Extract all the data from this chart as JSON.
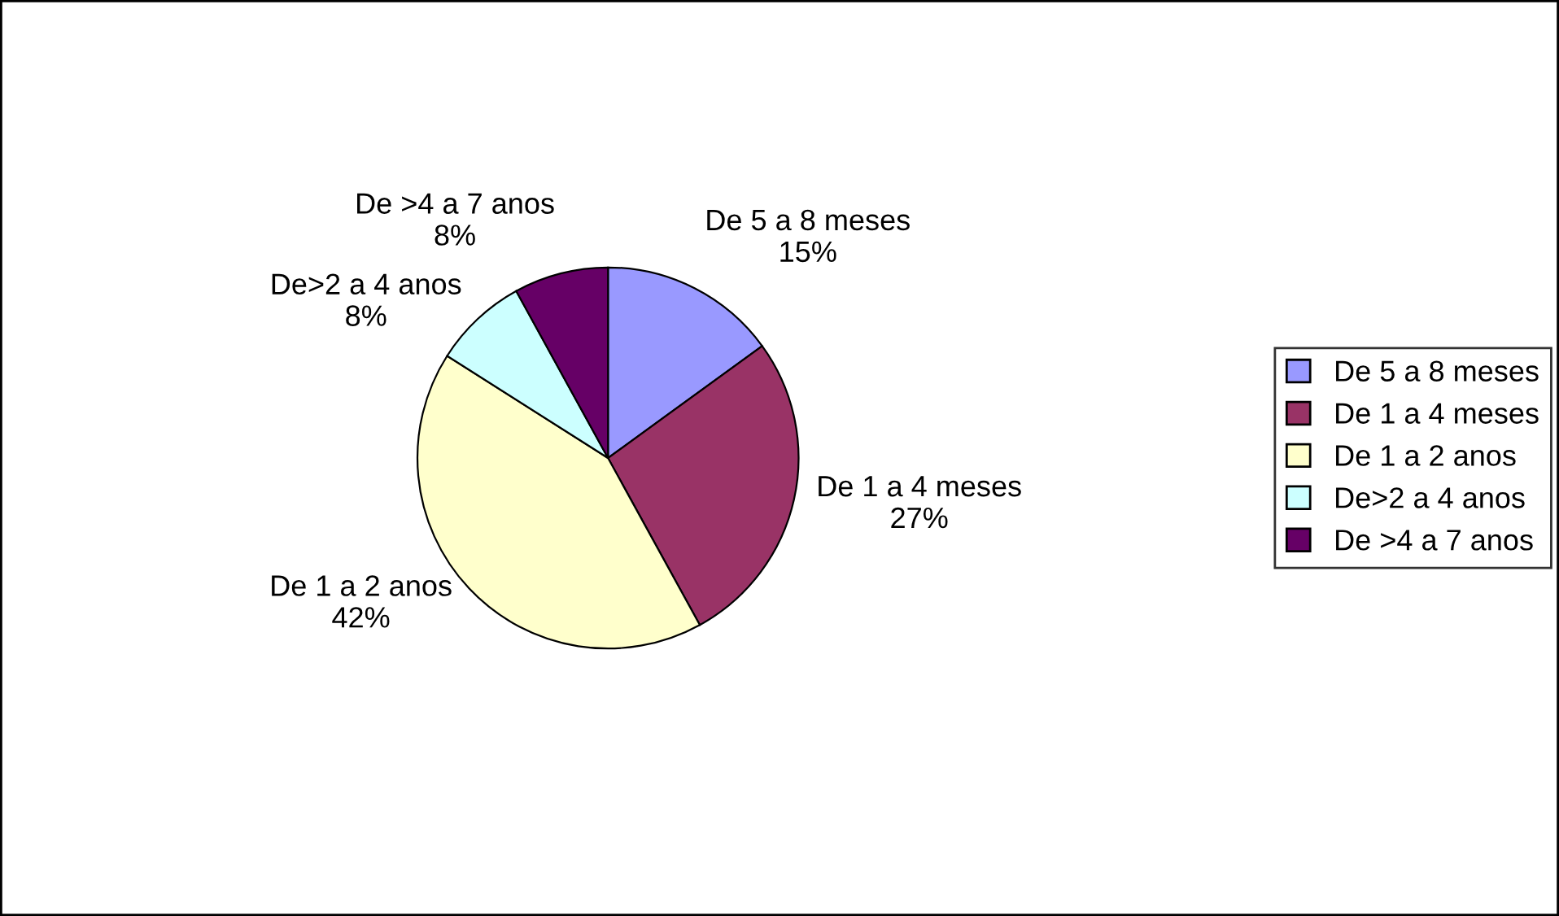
{
  "chart_data": {
    "type": "pie",
    "categories": [
      "De 5 a 8 meses",
      "De 1 a 4 meses",
      "De 1 a 2 anos",
      "De>2 a 4 anos",
      "De >4 a 7 anos"
    ],
    "values": [
      15,
      27,
      42,
      8,
      8
    ],
    "value_labels": [
      "15%",
      "27%",
      "42%",
      "8%",
      "8%"
    ],
    "colors": [
      "#9999ff",
      "#993366",
      "#ffffcc",
      "#ccffff",
      "#660066"
    ],
    "legend": "right"
  }
}
